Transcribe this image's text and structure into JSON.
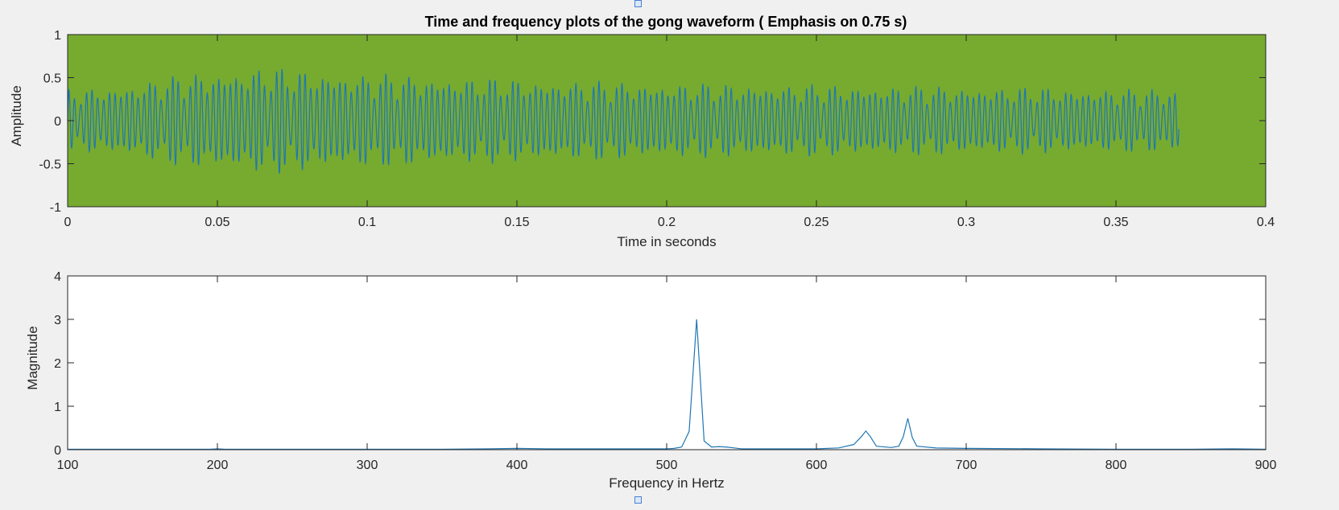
{
  "figure": {
    "title": "Time and frequency plots of the gong waveform ( Emphasis on 0.75 s)",
    "background": "#f0f0f0"
  },
  "chart_data": [
    {
      "type": "line",
      "title": "Time and frequency plots of the gong waveform ( Emphasis on 0.75 s)",
      "xlabel": "Time in seconds",
      "ylabel": "Amplitude",
      "xlim": [
        0,
        0.4
      ],
      "ylim": [
        -1,
        1
      ],
      "xticks": [
        0,
        0.05,
        0.1,
        0.15,
        0.2,
        0.25,
        0.3,
        0.35,
        0.4
      ],
      "xtick_labels": [
        "0",
        "0.05",
        "0.1",
        "0.15",
        "0.2",
        "0.25",
        "0.3",
        "0.35",
        "0.4"
      ],
      "yticks": [
        -1,
        -0.5,
        0,
        0.5,
        1
      ],
      "ytick_labels": [
        "-1",
        "-0.5",
        "0",
        "0.5",
        "1"
      ],
      "plot_background": "#77ab2f",
      "line_color": "#1f77b4",
      "grid": false,
      "signal": {
        "duration": 0.371,
        "components": [
          {
            "freq": 520,
            "amp": 0.3
          },
          {
            "freq": 633,
            "amp": 0.045
          },
          {
            "freq": 661,
            "amp": 0.07
          }
        ],
        "envelope": [
          [
            0,
            0.36
          ],
          [
            0.02,
            0.42
          ],
          [
            0.04,
            0.55
          ],
          [
            0.065,
            0.63
          ],
          [
            0.1,
            0.55
          ],
          [
            0.14,
            0.5
          ],
          [
            0.2,
            0.44
          ],
          [
            0.25,
            0.42
          ],
          [
            0.3,
            0.4
          ],
          [
            0.371,
            0.36
          ]
        ]
      }
    },
    {
      "type": "line",
      "title": "",
      "xlabel": "Frequency in Hertz",
      "ylabel": "Magnitude",
      "xlim": [
        100,
        900
      ],
      "ylim": [
        0,
        4
      ],
      "xticks": [
        100,
        200,
        300,
        400,
        500,
        600,
        700,
        800,
        900
      ],
      "xtick_labels": [
        "100",
        "200",
        "300",
        "400",
        "500",
        "600",
        "700",
        "800",
        "900"
      ],
      "yticks": [
        0,
        1,
        2,
        3,
        4
      ],
      "ytick_labels": [
        "0",
        "1",
        "2",
        "3",
        "4"
      ],
      "plot_background": "#ffffff",
      "line_color": "#1f77b4",
      "grid": false,
      "points": {
        "x": [
          100,
          150,
          195,
          200,
          205,
          250,
          300,
          350,
          380,
          400,
          420,
          460,
          490,
          500,
          505,
          510,
          515,
          520,
          525,
          530,
          535,
          540,
          545,
          550,
          560,
          580,
          600,
          615,
          625,
          630,
          633,
          636,
          640,
          650,
          655,
          658,
          661,
          664,
          667,
          680,
          700,
          750,
          800,
          850,
          880,
          900
        ],
        "y": [
          0.01,
          0.01,
          0.01,
          0.02,
          0.01,
          0.01,
          0.01,
          0.01,
          0.02,
          0.03,
          0.02,
          0.02,
          0.02,
          0.02,
          0.03,
          0.06,
          0.42,
          3.0,
          0.2,
          0.06,
          0.07,
          0.06,
          0.04,
          0.02,
          0.02,
          0.02,
          0.02,
          0.04,
          0.12,
          0.3,
          0.43,
          0.3,
          0.08,
          0.05,
          0.08,
          0.3,
          0.72,
          0.28,
          0.08,
          0.04,
          0.03,
          0.02,
          0.01,
          0.01,
          0.02,
          0.01
        ]
      }
    }
  ]
}
